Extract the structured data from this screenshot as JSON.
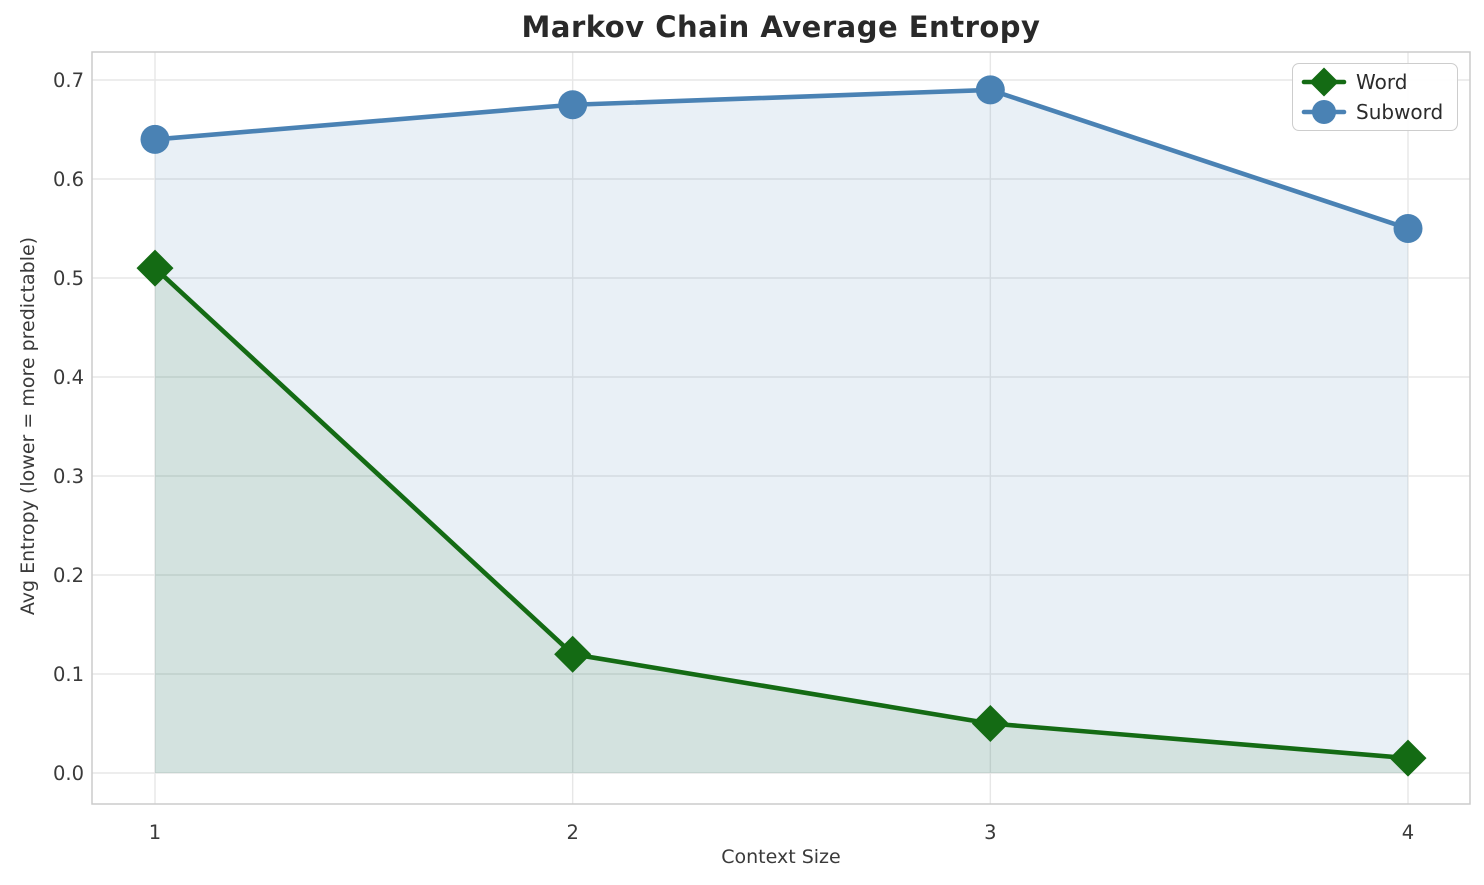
{
  "chart_data": {
    "type": "line",
    "title": "Markov Chain Average Entropy",
    "xlabel": "Context Size",
    "ylabel": "Avg Entropy (lower = more predictable)",
    "x": [
      1,
      2,
      3,
      4
    ],
    "x_tick_labels": [
      "1",
      "2",
      "3",
      "4"
    ],
    "y_ticks": [
      0.0,
      0.1,
      0.2,
      0.3,
      0.4,
      0.5,
      0.6,
      0.7
    ],
    "y_tick_labels": [
      "0.0",
      "0.1",
      "0.2",
      "0.3",
      "0.4",
      "0.5",
      "0.6",
      "0.7"
    ],
    "ylim": [
      0.0,
      0.7
    ],
    "grid": true,
    "legend_position": "upper right",
    "series": [
      {
        "name": "Word",
        "marker": "diamond",
        "color": "#146b14",
        "fill_alpha": 0.1,
        "values": [
          0.51,
          0.12,
          0.05,
          0.015
        ]
      },
      {
        "name": "Subword",
        "marker": "circle",
        "color": "#4a82b4",
        "fill_alpha": 0.12,
        "values": [
          0.64,
          0.675,
          0.69,
          0.55
        ]
      }
    ],
    "colors": {
      "background": "#ffffff",
      "gridline": "#e7e7e7",
      "spine": "#cbcbcb",
      "title_text": "#292929",
      "axis_text": "#3a3a3a",
      "legend_text": "#2b2b2b"
    }
  }
}
